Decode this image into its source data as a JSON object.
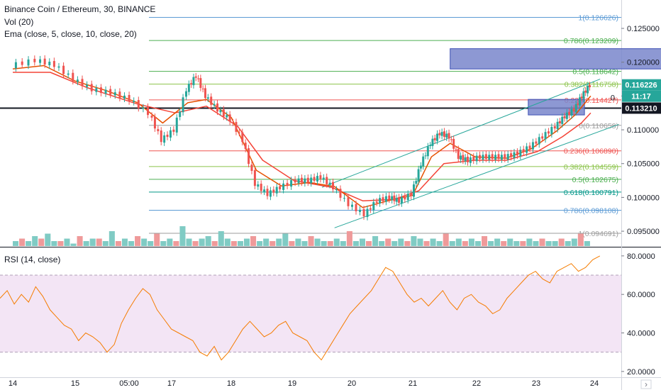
{
  "header": {
    "title": "Binance Coin / Ethereum, 30, BINANCE",
    "indicator_volume": "Vol (20)",
    "indicator_ema": "Ema (close, 5, close, 10, close, 20)",
    "indicator_rsi": "RSI (14, close)"
  },
  "badges": {
    "last_price": "0.116226",
    "countdown": "11:17",
    "crosshair_price": "0.113210",
    "partial_label": "0."
  },
  "colors": {
    "up": "#26a69a",
    "down": "#ef5350",
    "ema_fast": "#e65100",
    "ema_slow": "#f44336",
    "rsi_line": "#f57c00",
    "rsi_band": "#f3e5f5",
    "channel": "#26a69a",
    "box": "#7986cb",
    "badge_bg": "#131722"
  },
  "chart_data": [
    {
      "type": "line",
      "panel": "price",
      "ylim": [
        0.0927,
        0.1292
      ],
      "x_tick_labels": [
        "14",
        "15",
        "05:00",
        "17",
        "18",
        "19",
        "20",
        "21",
        "22",
        "23",
        "24"
      ],
      "y_tick_labels": [
        "0.125000",
        "0.120000",
        "0.115000",
        "0.110000",
        "0.105000",
        "0.100000",
        "0.095000"
      ],
      "fib_levels": [
        {
          "ratio": "1",
          "price": "0.126626",
          "color": "#5c9bd5"
        },
        {
          "ratio": "0.786",
          "price": "0.123209",
          "color": "#4caf50"
        },
        {
          "ratio": "0.5",
          "price": "0.118642",
          "color": "#4caf50"
        },
        {
          "ratio": "0.382",
          "price": "0.116758",
          "color": "#8bc34a"
        },
        {
          "ratio": "0.236",
          "price": "0.114427",
          "color": "#ef5350"
        },
        {
          "ratio": "0",
          "price": "0.110658",
          "color": "#9e9e9e"
        },
        {
          "ratio": "0.236",
          "price": "0.106890",
          "color": "#ef5350"
        },
        {
          "ratio": "0.382",
          "price": "0.104559",
          "color": "#8bc34a"
        },
        {
          "ratio": "0.5",
          "price": "0.102675",
          "color": "#4caf50"
        },
        {
          "ratio": "0.618",
          "price": "0.100791",
          "color": "#009688"
        },
        {
          "ratio": "0.786",
          "price": "0.098108",
          "color": "#5c9bd5"
        },
        {
          "ratio": "1",
          "price": "0.094691",
          "color": "#9e9e9e"
        }
      ],
      "horizontal_line": 0.11321,
      "price_path": [
        [
          0,
          0.1195
        ],
        [
          0.4,
          0.1203
        ],
        [
          0.7,
          0.1196
        ],
        [
          1.0,
          0.1175
        ],
        [
          1.3,
          0.116
        ],
        [
          1.6,
          0.1155
        ],
        [
          1.9,
          0.1145
        ],
        [
          2.2,
          0.1125
        ],
        [
          2.4,
          0.1085
        ],
        [
          2.6,
          0.11
        ],
        [
          2.8,
          0.116
        ],
        [
          2.95,
          0.118
        ],
        [
          3.1,
          0.115
        ],
        [
          3.3,
          0.113
        ],
        [
          3.5,
          0.1115
        ],
        [
          3.7,
          0.1085
        ],
        [
          3.9,
          0.102
        ],
        [
          4.1,
          0.1005
        ],
        [
          4.3,
          0.1015
        ],
        [
          4.55,
          0.1025
        ],
        [
          4.75,
          0.1025
        ],
        [
          4.95,
          0.103
        ],
        [
          5.15,
          0.1015
        ],
        [
          5.4,
          0.099
        ],
        [
          5.65,
          0.0975
        ],
        [
          5.85,
          0.0995
        ],
        [
          6.05,
          0.1
        ],
        [
          6.2,
          0.0995
        ],
        [
          6.4,
          0.1005
        ],
        [
          6.55,
          0.105
        ],
        [
          6.7,
          0.108
        ],
        [
          6.85,
          0.1095
        ],
        [
          7.0,
          0.109
        ],
        [
          7.15,
          0.106
        ],
        [
          7.3,
          0.1055
        ],
        [
          7.5,
          0.106
        ],
        [
          7.7,
          0.106
        ],
        [
          7.9,
          0.106
        ],
        [
          8.1,
          0.1065
        ],
        [
          8.3,
          0.1075
        ],
        [
          8.5,
          0.109
        ],
        [
          8.7,
          0.1105
        ],
        [
          8.85,
          0.112
        ],
        [
          9.0,
          0.113
        ],
        [
          9.12,
          0.115
        ],
        [
          9.25,
          0.1166
        ]
      ],
      "ema_fast_path": [
        [
          0,
          0.119
        ],
        [
          0.5,
          0.1195
        ],
        [
          1.0,
          0.1172
        ],
        [
          1.5,
          0.1158
        ],
        [
          2.0,
          0.114
        ],
        [
          2.4,
          0.111
        ],
        [
          2.8,
          0.114
        ],
        [
          3.1,
          0.1145
        ],
        [
          3.5,
          0.1118
        ],
        [
          3.9,
          0.104
        ],
        [
          4.3,
          0.1017
        ],
        [
          4.75,
          0.1022
        ],
        [
          5.15,
          0.1016
        ],
        [
          5.6,
          0.0985
        ],
        [
          6.05,
          0.0996
        ],
        [
          6.4,
          0.1003
        ],
        [
          6.7,
          0.106
        ],
        [
          7.0,
          0.108
        ],
        [
          7.4,
          0.106
        ],
        [
          7.9,
          0.1058
        ],
        [
          8.3,
          0.1072
        ],
        [
          8.7,
          0.1098
        ],
        [
          9.0,
          0.1122
        ],
        [
          9.25,
          0.115
        ]
      ],
      "ema_slow_path": [
        [
          0,
          0.1185
        ],
        [
          0.6,
          0.1185
        ],
        [
          1.2,
          0.1162
        ],
        [
          2.0,
          0.1138
        ],
        [
          2.6,
          0.1125
        ],
        [
          3.1,
          0.1135
        ],
        [
          3.6,
          0.1105
        ],
        [
          4.0,
          0.1055
        ],
        [
          4.5,
          0.1025
        ],
        [
          5.1,
          0.1015
        ],
        [
          5.6,
          0.0995
        ],
        [
          6.1,
          0.0997
        ],
        [
          6.5,
          0.101
        ],
        [
          6.9,
          0.105
        ],
        [
          7.4,
          0.1055
        ],
        [
          7.9,
          0.1055
        ],
        [
          8.4,
          0.1068
        ],
        [
          8.8,
          0.109
        ],
        [
          9.1,
          0.111
        ],
        [
          9.25,
          0.1125
        ]
      ],
      "channel_upper": [
        [
          4.95,
          0.1015
        ],
        [
          9.4,
          0.1175
        ]
      ],
      "channel_lower": [
        [
          5.15,
          0.0955
        ],
        [
          9.7,
          0.1108
        ]
      ],
      "rectangles": [
        {
          "x1": 7.2,
          "x2": 11.25,
          "y1": 0.122,
          "y2": 0.119
        },
        {
          "x1": 8.45,
          "x2": 9.15,
          "y1": 0.1145,
          "y2": 0.1122
        }
      ],
      "volume": [
        2,
        3,
        2,
        4,
        3,
        5,
        2,
        2,
        3,
        1,
        4,
        2,
        3,
        3,
        2,
        6,
        2,
        3,
        2,
        4,
        3,
        2,
        5,
        2,
        3,
        2,
        8,
        3,
        2,
        3,
        4,
        2,
        6,
        3,
        2,
        2,
        3,
        4,
        2,
        3,
        2,
        3,
        5,
        2,
        3,
        2,
        4,
        3,
        2,
        2,
        3,
        2,
        6,
        2,
        3,
        2,
        4,
        2,
        3,
        2,
        3,
        2,
        4,
        3,
        2,
        3,
        2,
        5,
        2,
        3,
        2,
        3,
        2,
        4,
        2,
        3,
        2,
        3,
        2,
        2,
        3,
        2,
        3,
        2,
        2,
        3,
        2,
        3,
        5,
        2
      ]
    },
    {
      "type": "line",
      "panel": "rsi",
      "ylim": [
        17,
        84
      ],
      "y_tick_labels": [
        "80.0000",
        "60.0000",
        "40.0000",
        "20.0000"
      ],
      "band": [
        30,
        70
      ],
      "values": [
        58,
        62,
        55,
        60,
        56,
        64,
        59,
        52,
        48,
        44,
        42,
        36,
        40,
        38,
        35,
        30,
        34,
        45,
        52,
        58,
        63,
        60,
        52,
        47,
        42,
        40,
        38,
        36,
        30,
        28,
        33,
        26,
        30,
        36,
        42,
        46,
        42,
        38,
        40,
        44,
        46,
        40,
        38,
        36,
        30,
        26,
        32,
        38,
        44,
        50,
        54,
        58,
        62,
        68,
        74,
        72,
        66,
        60,
        56,
        58,
        54,
        58,
        62,
        56,
        52,
        58,
        60,
        56,
        54,
        50,
        52,
        58,
        62,
        66,
        70,
        72,
        68,
        66,
        72,
        74,
        76,
        72,
        74,
        78,
        80
      ]
    }
  ]
}
